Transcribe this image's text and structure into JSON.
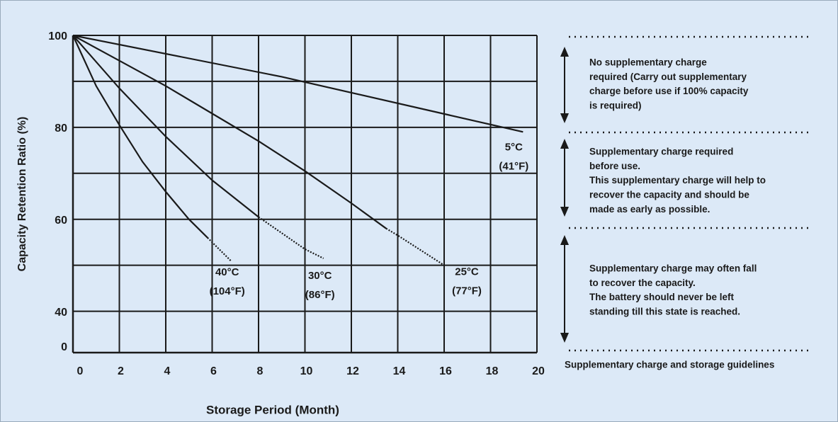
{
  "chart_data": {
    "type": "line",
    "x_label": "Storage Period (Month)",
    "y_label": "Capacity Retention Ratio (%)",
    "xlim": [
      0,
      20
    ],
    "xticks": [
      0,
      2,
      4,
      6,
      8,
      10,
      12,
      14,
      16,
      18,
      20
    ],
    "ylim": [
      31,
      100
    ],
    "yticks": [
      40,
      60,
      80,
      100
    ],
    "ygrid": [
      40,
      50,
      60,
      70,
      80,
      90,
      100
    ],
    "y_break_label": "0",
    "grid": true,
    "series": [
      {
        "name": "5°C",
        "label": [
          "5°C",
          "(41°F)"
        ],
        "color": "#1a1a1a",
        "dotted_after": 20,
        "x": [
          0,
          9,
          19.4
        ],
        "values": [
          100,
          91,
          79
        ]
      },
      {
        "name": "25°C",
        "label": [
          "25°C",
          "(77°F)"
        ],
        "color": "#1a1a1a",
        "dotted_after": 13.5,
        "x": [
          0,
          2,
          4,
          6,
          8,
          10,
          12,
          13.5,
          14,
          16
        ],
        "values": [
          100,
          94.5,
          89,
          83,
          77,
          70.5,
          63.5,
          58,
          56.5,
          50
        ]
      },
      {
        "name": "30°C",
        "label": [
          "30°C",
          "(86°F)"
        ],
        "color": "#1a1a1a",
        "dotted_after": 8,
        "x": [
          0,
          2,
          4,
          6,
          8,
          10,
          10.8
        ],
        "values": [
          100,
          88.5,
          78,
          68.5,
          60.5,
          53.5,
          51.5
        ]
      },
      {
        "name": "40°C",
        "label": [
          "40°C",
          "(104°F)"
        ],
        "color": "#1a1a1a",
        "dotted_after": 5.8,
        "x": [
          0,
          1,
          2,
          3,
          4,
          5,
          5.8,
          6.8
        ],
        "values": [
          100,
          89,
          80.5,
          72.5,
          66,
          60,
          56,
          51
        ]
      }
    ]
  },
  "panel": {
    "zones": [
      {
        "lines": [
          "No supplementary charge",
          "required (Carry out supplementary",
          "charge before use if 100%  capacity",
          "is required)"
        ]
      },
      {
        "lines": [
          "Supplementary charge required",
          "before use.",
          "This supplementary charge will help to",
          "recover the capacity and should be",
          "made as early as possible."
        ]
      },
      {
        "lines": [
          "Supplementary charge may often fall",
          "to recover the capacity.",
          "The battery should never be left",
          "standing till this state is reached."
        ]
      }
    ],
    "caption": "Supplementary charge and storage guidelines"
  }
}
